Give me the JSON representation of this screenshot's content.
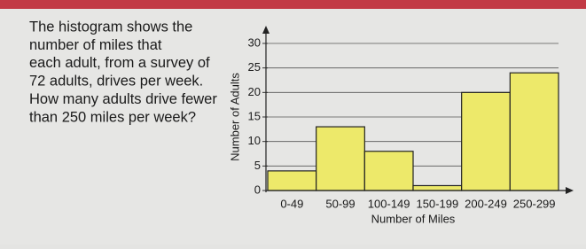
{
  "question_lines": [
    "The histogram shows the",
    "number of miles that",
    "each adult, from a survey of",
    "72 adults, drives per week.",
    "How many adults drive fewer",
    "than 250 miles per week?"
  ],
  "chart_data": {
    "type": "bar",
    "xlabel": "Number of Miles",
    "ylabel": "Number of Adults",
    "categories": [
      "0-49",
      "50-99",
      "100-149",
      "150-199",
      "200-249",
      "250-299"
    ],
    "values": [
      4,
      13,
      8,
      1,
      20,
      24
    ],
    "color": "#ede96a",
    "ylim": [
      0,
      30
    ],
    "yticks": [
      0,
      5,
      10,
      15,
      20,
      25,
      30
    ],
    "grid": true
  }
}
